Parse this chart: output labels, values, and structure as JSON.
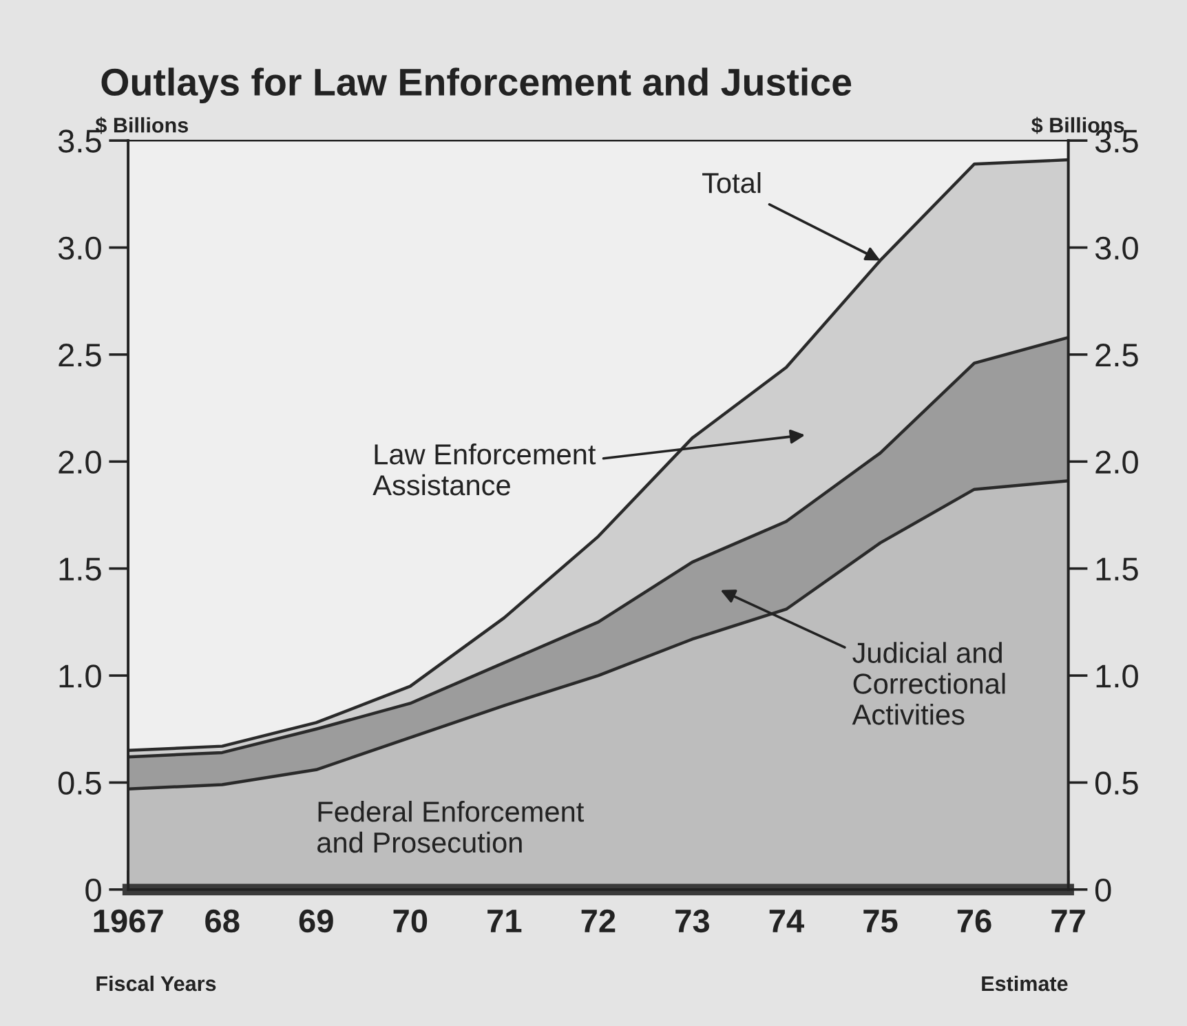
{
  "chart_data": {
    "type": "area",
    "stacked": true,
    "title": "Outlays for Law Enforcement and Justice",
    "ylabel": "$ Billions",
    "y2label": "$ Billions",
    "xlabel": "Fiscal Years",
    "categories": [
      "1967",
      "68",
      "69",
      "70",
      "71",
      "72",
      "73",
      "74",
      "75",
      "76",
      "77"
    ],
    "series": [
      {
        "name": "Federal Enforcement\nand Prosecution",
        "color": "#bdbdbd",
        "values": [
          0.47,
          0.49,
          0.56,
          0.71,
          0.86,
          1.0,
          1.17,
          1.31,
          1.62,
          1.87,
          1.91
        ]
      },
      {
        "name": "Judicial and\nCorrectional\nActivities",
        "color": "#9c9c9c",
        "values": [
          0.15,
          0.15,
          0.19,
          0.16,
          0.2,
          0.25,
          0.36,
          0.41,
          0.42,
          0.59,
          0.67
        ]
      },
      {
        "name": "Law Enforcement\nAssistance",
        "color": "#cecece",
        "values": [
          0.03,
          0.03,
          0.03,
          0.08,
          0.21,
          0.4,
          0.58,
          0.72,
          0.9,
          0.93,
          0.83
        ]
      }
    ],
    "ylim": [
      0,
      3.5
    ],
    "yticks": [
      0,
      0.5,
      {
        "value": 1,
        "label": "1.0"
      },
      1.5,
      {
        "value": 2,
        "label": "2.0"
      },
      2.5,
      {
        "value": 3,
        "label": "3.0"
      },
      3.5
    ],
    "y2lim": [
      0,
      3.5
    ],
    "y2ticks": [
      0,
      0.5,
      {
        "value": 1,
        "label": "1.0"
      },
      1.5,
      {
        "value": 2,
        "label": "2.0"
      },
      2.5,
      {
        "value": 3,
        "label": "3.0"
      },
      3.5
    ],
    "annotations": [
      {
        "text": "Total",
        "x": "75",
        "y": 2.94
      },
      "Estimate"
    ],
    "grid": false,
    "legend": false
  }
}
